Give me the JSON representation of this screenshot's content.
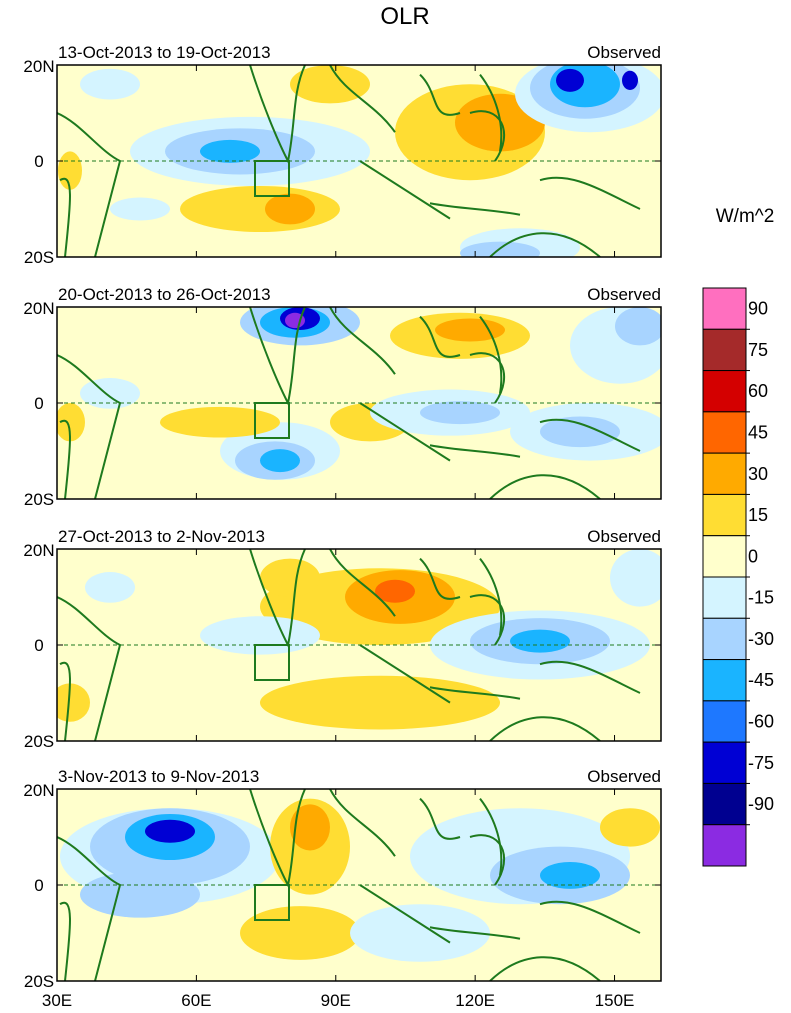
{
  "title": "OLR",
  "units": "W/m^2",
  "panels": [
    {
      "period": "13-Oct-2013 to 19-Oct-2013",
      "label": "Observed"
    },
    {
      "period": "20-Oct-2013 to 26-Oct-2013",
      "label": "Observed"
    },
    {
      "period": "27-Oct-2013 to 2-Nov-2013",
      "label": "Observed"
    },
    {
      "period": "3-Nov-2013 to 9-Nov-2013",
      "label": "Observed"
    }
  ],
  "lat_labels": [
    "20N",
    "0",
    "20S"
  ],
  "lon_labels": [
    "30E",
    "60E",
    "90E",
    "120E",
    "150E"
  ],
  "colorbar": {
    "levels": [
      "90",
      "75",
      "60",
      "45",
      "30",
      "15",
      "0",
      "-15",
      "-30",
      "-45",
      "-60",
      "-75",
      "-90"
    ],
    "colors": [
      "#ff6fbf",
      "#a52a2a",
      "#d40000",
      "#ff6600",
      "#ffaa00",
      "#ffdd33",
      "#ffffcc",
      "#d4f4ff",
      "#a8d4ff",
      "#1ab4ff",
      "#1e78ff",
      "#0000d4",
      "#000090",
      "#8b2be2"
    ]
  },
  "colors": {
    "land": "#1e7a1e",
    "equator": "#1e7a1e"
  }
}
